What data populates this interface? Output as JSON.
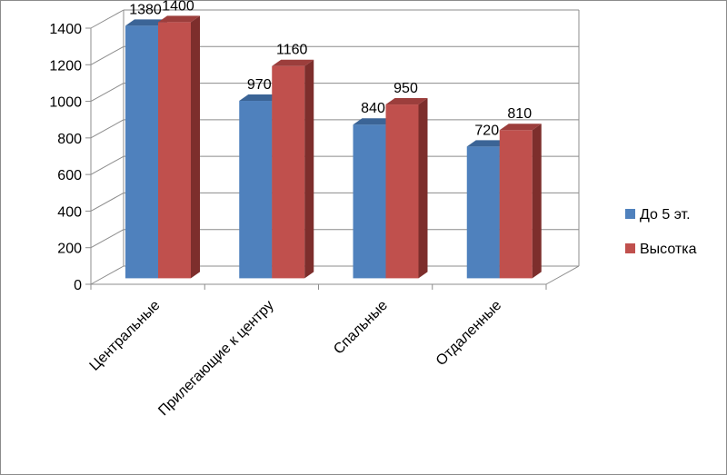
{
  "chart_data": {
    "type": "bar",
    "categories": [
      "Центральные",
      "Прилегающие к центру",
      "Спальные",
      "Отдаленные"
    ],
    "series": [
      {
        "name": "До 5 эт.",
        "values": [
          1380,
          970,
          840,
          720
        ]
      },
      {
        "name": "Высотка",
        "values": [
          1400,
          1160,
          950,
          810
        ]
      }
    ],
    "y_ticks": [
      "0",
      "200",
      "400",
      "600",
      "800",
      "1000",
      "1200",
      "1400"
    ],
    "ylim": [
      0,
      1400
    ],
    "grid": true,
    "legend_position": "right",
    "three_d": true
  },
  "colors": {
    "series_front": [
      "#4f81bd",
      "#c0504d"
    ],
    "series_side": [
      "#2d4f78",
      "#7d2e2c"
    ],
    "series_top": [
      "#3b6496",
      "#9c3e3c"
    ],
    "grid": "#8c8c8c"
  }
}
